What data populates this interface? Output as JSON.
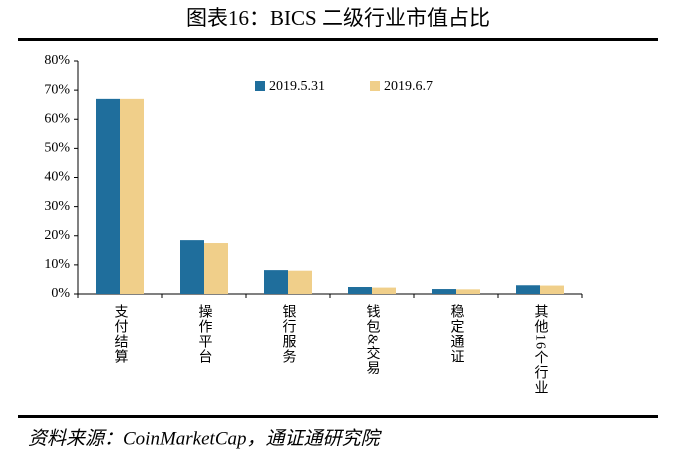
{
  "chart_data": {
    "type": "bar",
    "title": "图表16：BICS 二级行业市值占比",
    "source": "资料来源：CoinMarketCap，通证通研究院",
    "categories": [
      "支付结算",
      "操作平台",
      "银行服务",
      "钱包&交易",
      "稳定通证",
      "其他16个行业"
    ],
    "series": [
      {
        "name": "2019.5.31",
        "color": "#1f6e9c",
        "values": [
          67,
          18.5,
          8.2,
          2.4,
          1.7,
          3.0
        ]
      },
      {
        "name": "2019.6.7",
        "color": "#f0cf8a",
        "values": [
          67,
          17.5,
          8.0,
          2.2,
          1.6,
          2.9
        ]
      }
    ],
    "ylim": [
      0,
      80
    ],
    "yticks": [
      {
        "value": 0,
        "label": "0%"
      },
      {
        "value": 10,
        "label": "10%"
      },
      {
        "value": 20,
        "label": "20%"
      },
      {
        "value": 30,
        "label": "30%"
      },
      {
        "value": 40,
        "label": "40%"
      },
      {
        "value": 50,
        "label": "50%"
      },
      {
        "value": 60,
        "label": "60%"
      },
      {
        "value": 70,
        "label": "70%"
      },
      {
        "value": 80,
        "label": "80%"
      }
    ],
    "grid": false
  }
}
